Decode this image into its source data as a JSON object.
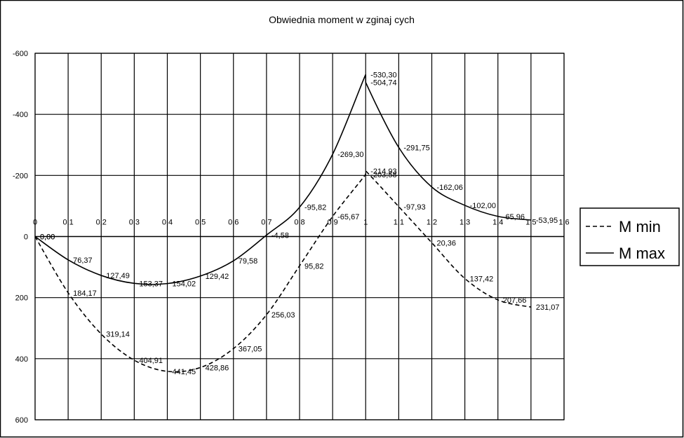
{
  "chart_data": {
    "type": "line",
    "title": "Obwiednia moment  w zginaj  cych",
    "xlabel": "",
    "ylabel": "",
    "ylim": [
      -600,
      600
    ],
    "y_inverted": true,
    "xlim": [
      0,
      1.6
    ],
    "x_ticks": [
      "0",
      "0,1",
      "0,2",
      "0,3",
      "0,4",
      "0,5",
      "0,6",
      "0,7",
      "0,8",
      "0,9",
      "1",
      "1,1",
      "1,2",
      "1,3",
      "1,4",
      "1,5",
      "1,6"
    ],
    "y_ticks": [
      "-600",
      "-400",
      "-200",
      "0",
      "200",
      "400",
      "600"
    ],
    "grid": true,
    "legend_position": "right",
    "x": [
      0,
      0.1,
      0.2,
      0.3,
      0.4,
      0.5,
      0.6,
      0.7,
      0.8,
      0.9,
      1.0,
      1.0,
      1.1,
      1.2,
      1.3,
      1.4,
      1.5
    ],
    "series": [
      {
        "name": "M min",
        "style": "dashed",
        "values": [
          0,
          184.17,
          319.14,
          404.91,
          441.45,
          428.86,
          367.05,
          256.03,
          95.82,
          -65.67,
          -203.58,
          -214.93,
          -97.93,
          20.36,
          137.42,
          207.66,
          231.07
        ],
        "labels": [
          "0,00",
          "184,17",
          "319,14",
          "404,91",
          "441,45",
          "428,86",
          "367,05",
          "256,03",
          "95,82",
          "-65,67",
          "-203,58",
          "-214,93",
          "-97,93",
          "20,36",
          "137,42",
          "207,66",
          "231,07"
        ]
      },
      {
        "name": "M max",
        "style": "solid",
        "values": [
          0,
          76.37,
          127.49,
          153.37,
          154.02,
          129.42,
          79.58,
          -4.58,
          -95.82,
          -269.3,
          -530.3,
          -504.74,
          -291.75,
          -162.06,
          -102.0,
          -65.96,
          -53.95
        ],
        "labels": [
          "0,00",
          "76,37",
          "127,49",
          "153,37",
          "154,02",
          "129,42",
          "79,58",
          "-4,58",
          "-95,82",
          "-269,30",
          "-530,30",
          "-504,74",
          "-291,75",
          "-162,06",
          "-102,00",
          "-65,96",
          "-53,95"
        ]
      }
    ]
  }
}
